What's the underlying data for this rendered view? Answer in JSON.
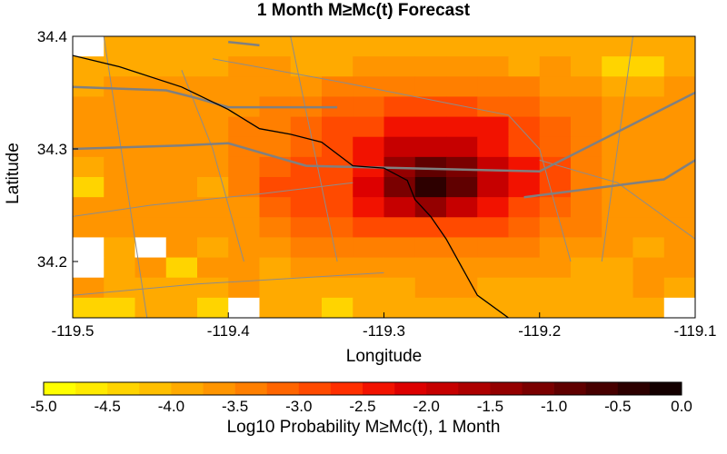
{
  "title": "1 Month M≥Mc(t) Forecast",
  "x_axis": {
    "label": "Longitude",
    "ticks": [
      "-119.5",
      "-119.4",
      "-119.3",
      "-119.2",
      "-119.1"
    ]
  },
  "y_axis": {
    "label": "Latitude",
    "ticks": [
      "34.4",
      "34.3",
      "34.2"
    ]
  },
  "colorbar": {
    "label": "Log10 Probability M≥Mc(t), 1 Month",
    "ticks": [
      "-5.0",
      "-4.5",
      "-4.0",
      "-3.5",
      "-3.0",
      "-2.5",
      "-2.0",
      "-1.5",
      "-1.0",
      "-0.5",
      "0.0"
    ],
    "colors": [
      "#ffff00",
      "#ffea00",
      "#ffd400",
      "#ffbf00",
      "#ffaa00",
      "#ff9500",
      "#ff7f00",
      "#ff6500",
      "#ff4a00",
      "#ff2f00",
      "#f21200",
      "#dd0000",
      "#c60000",
      "#ad0000",
      "#940000",
      "#7a0000",
      "#600000",
      "#470000",
      "#2d0000",
      "#140000"
    ]
  },
  "chart_data": {
    "type": "heatmap",
    "title": "1 Month M≥Mc(t) Forecast",
    "xlabel": "Longitude",
    "ylabel": "Latitude",
    "xlim": [
      -119.5,
      -119.1
    ],
    "ylim": [
      34.15,
      34.4
    ],
    "color_range": [
      -5.0,
      0.0
    ],
    "colorbar_label": "Log10 Probability M≥Mc(t), 1 Month",
    "x_cell_size": 0.02,
    "y_cell_size": 0.0167,
    "values": [
      [
        -5.0,
        -4.0,
        -4.0,
        -4.0,
        -4.0,
        -4.0,
        -4.0,
        -4.0,
        -4.0,
        -4.0,
        -4.0,
        -4.0,
        -4.0,
        -4.0,
        -4.0,
        -4.0,
        -4.0,
        -4.0,
        -4.0,
        -4.0
      ],
      [
        -4.0,
        -4.0,
        -4.0,
        -4.0,
        -4.0,
        -3.7,
        -3.7,
        -4.0,
        -4.0,
        -3.7,
        -3.7,
        -3.7,
        -3.7,
        -3.7,
        -4.0,
        -3.7,
        -4.0,
        -4.3,
        -4.5,
        -4.0
      ],
      [
        -4.0,
        -3.7,
        -3.7,
        -3.7,
        -3.7,
        -3.7,
        -3.7,
        -3.7,
        -3.5,
        -3.5,
        -3.5,
        -3.5,
        -3.5,
        -3.5,
        -3.5,
        -3.7,
        -3.7,
        -4.0,
        -4.0,
        -3.7
      ],
      [
        -3.7,
        -3.7,
        -3.7,
        -3.7,
        -3.7,
        -3.7,
        -3.5,
        -3.5,
        -3.2,
        -3.2,
        -3.0,
        -3.0,
        -3.0,
        -3.2,
        -3.2,
        -3.5,
        -3.5,
        -3.7,
        -3.7,
        -3.7
      ],
      [
        -3.7,
        -3.7,
        -3.7,
        -3.7,
        -3.7,
        -3.5,
        -3.5,
        -3.2,
        -3.0,
        -2.8,
        -2.3,
        -2.3,
        -2.3,
        -2.5,
        -3.0,
        -3.2,
        -3.5,
        -3.7,
        -3.7,
        -3.7
      ],
      [
        -3.7,
        -3.7,
        -3.7,
        -3.7,
        -3.7,
        -3.5,
        -3.5,
        -3.2,
        -3.0,
        -2.5,
        -2.0,
        -1.8,
        -1.8,
        -2.3,
        -2.8,
        -3.2,
        -3.5,
        -3.7,
        -3.7,
        -3.7
      ],
      [
        -4.0,
        -3.7,
        -3.7,
        -3.7,
        -3.7,
        -3.5,
        -3.2,
        -3.0,
        -2.8,
        -2.3,
        -1.5,
        -0.8,
        -1.2,
        -2.0,
        -2.5,
        -3.0,
        -3.5,
        -3.7,
        -3.7,
        -3.7
      ],
      [
        -4.3,
        -3.7,
        -3.7,
        -3.7,
        -4.0,
        -3.5,
        -3.0,
        -3.0,
        -2.8,
        -2.2,
        -1.2,
        -0.5,
        -0.8,
        -1.8,
        -2.3,
        -3.0,
        -3.5,
        -3.7,
        -3.7,
        -3.7
      ],
      [
        -3.7,
        -3.7,
        -3.7,
        -3.7,
        -3.7,
        -3.7,
        -3.2,
        -3.0,
        -3.0,
        -2.5,
        -1.8,
        -1.5,
        -1.8,
        -2.3,
        -2.8,
        -3.2,
        -3.5,
        -3.7,
        -3.7,
        -3.7
      ],
      [
        -3.7,
        -3.7,
        -3.7,
        -3.7,
        -3.7,
        -3.7,
        -3.5,
        -3.2,
        -3.2,
        -3.0,
        -2.8,
        -2.8,
        -2.8,
        -3.0,
        -3.2,
        -3.5,
        -3.5,
        -3.7,
        -3.7,
        -3.7
      ],
      [
        -5.0,
        -4.0,
        -5.0,
        -3.7,
        -4.0,
        -3.7,
        -3.7,
        -3.5,
        -3.5,
        -3.5,
        -3.5,
        -3.5,
        -3.5,
        -3.5,
        -3.5,
        -3.7,
        -3.7,
        -3.7,
        -4.0,
        -3.7
      ],
      [
        -5.0,
        -4.0,
        -3.7,
        -4.5,
        -3.7,
        -3.7,
        -4.0,
        -3.7,
        -3.7,
        -3.7,
        -3.7,
        -3.7,
        -3.7,
        -3.7,
        -3.7,
        -3.7,
        -4.0,
        -4.0,
        -3.7,
        -3.7
      ],
      [
        -3.7,
        -4.0,
        -4.0,
        -4.0,
        -4.0,
        -3.7,
        -4.0,
        -4.0,
        -4.0,
        -4.0,
        -4.0,
        -3.7,
        -3.7,
        -4.0,
        -4.0,
        -4.0,
        -4.0,
        -4.0,
        -3.7,
        -4.0
      ],
      [
        -4.5,
        -4.5,
        -4.0,
        -4.0,
        -4.3,
        -5.0,
        -4.0,
        -4.0,
        -4.3,
        -4.0,
        -4.0,
        -4.0,
        -4.0,
        -4.0,
        -4.0,
        -4.0,
        -4.0,
        -4.0,
        -4.0,
        -5.0
      ]
    ]
  },
  "overlays": {
    "coastline": [
      [
        -119.5,
        34.383
      ],
      [
        -119.47,
        34.373
      ],
      [
        -119.43,
        34.355
      ],
      [
        -119.4,
        34.335
      ],
      [
        -119.38,
        34.318
      ],
      [
        -119.36,
        34.313
      ],
      [
        -119.34,
        34.306
      ],
      [
        -119.32,
        34.285
      ],
      [
        -119.3,
        34.283
      ],
      [
        -119.285,
        34.272
      ],
      [
        -119.28,
        34.255
      ],
      [
        -119.27,
        34.24
      ],
      [
        -119.26,
        34.22
      ],
      [
        -119.24,
        34.17
      ],
      [
        -119.22,
        34.15
      ]
    ],
    "highways": [
      [
        [
          -119.5,
          34.355
        ],
        [
          -119.44,
          34.352
        ],
        [
          -119.42,
          34.345
        ],
        [
          -119.4,
          34.337
        ],
        [
          -119.33,
          34.337
        ]
      ],
      [
        [
          -119.5,
          34.3
        ],
        [
          -119.43,
          34.303
        ],
        [
          -119.4,
          34.305
        ],
        [
          -119.35,
          34.285
        ],
        [
          -119.2,
          34.28
        ],
        [
          -119.1,
          34.35
        ]
      ],
      [
        [
          -119.21,
          34.257
        ],
        [
          -119.12,
          34.273
        ],
        [
          -119.1,
          34.29
        ]
      ],
      [
        [
          -119.4,
          34.395
        ],
        [
          -119.38,
          34.392
        ]
      ],
      [
        [
          -119.2,
          34.13
        ],
        [
          -119.25,
          34.105
        ]
      ]
    ],
    "roads": [
      [
        [
          -119.48,
          34.4
        ],
        [
          -119.45,
          34.13
        ]
      ],
      [
        [
          -119.43,
          34.37
        ],
        [
          -119.41,
          34.3
        ],
        [
          -119.39,
          34.2
        ]
      ],
      [
        [
          -119.41,
          34.38
        ],
        [
          -119.33,
          34.36
        ],
        [
          -119.22,
          34.33
        ],
        [
          -119.2,
          34.3
        ],
        [
          -119.18,
          34.2
        ]
      ],
      [
        [
          -119.36,
          34.4
        ],
        [
          -119.33,
          34.2
        ]
      ],
      [
        [
          -119.14,
          34.4
        ],
        [
          -119.15,
          34.3
        ],
        [
          -119.16,
          34.2
        ]
      ],
      [
        [
          -119.2,
          34.29
        ],
        [
          -119.15,
          34.27
        ],
        [
          -119.12,
          34.24
        ],
        [
          -119.1,
          34.22
        ]
      ],
      [
        [
          -119.5,
          34.24
        ],
        [
          -119.45,
          34.25
        ],
        [
          -119.38,
          34.26
        ],
        [
          -119.32,
          34.27
        ]
      ],
      [
        [
          -119.5,
          34.17
        ],
        [
          -119.42,
          34.18
        ],
        [
          -119.3,
          34.19
        ]
      ]
    ]
  }
}
